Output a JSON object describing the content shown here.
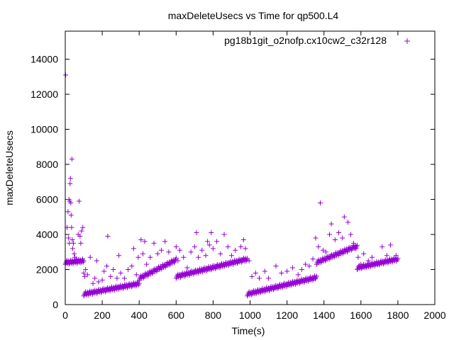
{
  "chart_data": {
    "type": "scatter",
    "title": "maxDeleteUsecs vs Time for qp500.L4",
    "xlabel": "Time(s)",
    "ylabel": "maxDeleteUsecs",
    "xlim": [
      0,
      2000
    ],
    "ylim": [
      0,
      15600
    ],
    "x_ticks": [
      0,
      200,
      400,
      600,
      800,
      1000,
      1200,
      1400,
      1600,
      1800,
      2000
    ],
    "y_ticks": [
      0,
      2000,
      4000,
      6000,
      8000,
      10000,
      12000,
      14000
    ],
    "grid": false,
    "legend_position": "top-right",
    "series": [
      {
        "name": "pg18b1git_o2nofp.cx10cw2_c32r128",
        "marker": "plus",
        "color": "#9400d3",
        "segments": [
          {
            "x_start": 0,
            "x_end": 100,
            "y_start": 2400,
            "y_end": 2500,
            "count": 34
          },
          {
            "x_start": 100,
            "x_end": 400,
            "y_start": 600,
            "y_end": 1200,
            "count": 90
          },
          {
            "x_start": 400,
            "x_end": 600,
            "y_start": 1500,
            "y_end": 2550,
            "count": 60
          },
          {
            "x_start": 600,
            "x_end": 985,
            "y_start": 1600,
            "y_end": 2600,
            "count": 115
          },
          {
            "x_start": 985,
            "x_end": 1360,
            "y_start": 600,
            "y_end": 1550,
            "count": 112
          },
          {
            "x_start": 1360,
            "x_end": 1580,
            "y_start": 2400,
            "y_end": 3350,
            "count": 66
          },
          {
            "x_start": 1580,
            "x_end": 1800,
            "y_start": 2100,
            "y_end": 2600,
            "count": 66
          }
        ],
        "scatter_points": [
          {
            "x": 2,
            "y": 13100
          },
          {
            "x": 10,
            "y": 4400
          },
          {
            "x": 15,
            "y": 5300
          },
          {
            "x": 18,
            "y": 3800
          },
          {
            "x": 20,
            "y": 6000
          },
          {
            "x": 22,
            "y": 3500
          },
          {
            "x": 24,
            "y": 5900
          },
          {
            "x": 26,
            "y": 6900
          },
          {
            "x": 28,
            "y": 7200
          },
          {
            "x": 30,
            "y": 5800
          },
          {
            "x": 32,
            "y": 5100
          },
          {
            "x": 34,
            "y": 4400
          },
          {
            "x": 36,
            "y": 8300
          },
          {
            "x": 38,
            "y": 3700
          },
          {
            "x": 40,
            "y": 3200
          },
          {
            "x": 44,
            "y": 3500
          },
          {
            "x": 48,
            "y": 2900
          },
          {
            "x": 52,
            "y": 2700
          },
          {
            "x": 60,
            "y": 2600
          },
          {
            "x": 70,
            "y": 4000
          },
          {
            "x": 75,
            "y": 5900
          },
          {
            "x": 80,
            "y": 3900
          },
          {
            "x": 84,
            "y": 3500
          },
          {
            "x": 88,
            "y": 4200
          },
          {
            "x": 95,
            "y": 4400
          },
          {
            "x": 100,
            "y": 1800
          },
          {
            "x": 105,
            "y": 1600
          },
          {
            "x": 110,
            "y": 2000
          },
          {
            "x": 120,
            "y": 1700
          },
          {
            "x": 135,
            "y": 2700
          },
          {
            "x": 150,
            "y": 1200
          },
          {
            "x": 160,
            "y": 1500
          },
          {
            "x": 170,
            "y": 2500
          },
          {
            "x": 180,
            "y": 1300
          },
          {
            "x": 200,
            "y": 1400
          },
          {
            "x": 210,
            "y": 1900
          },
          {
            "x": 225,
            "y": 2200
          },
          {
            "x": 230,
            "y": 3900
          },
          {
            "x": 245,
            "y": 1600
          },
          {
            "x": 260,
            "y": 2000
          },
          {
            "x": 280,
            "y": 1500
          },
          {
            "x": 290,
            "y": 2800
          },
          {
            "x": 300,
            "y": 1800
          },
          {
            "x": 320,
            "y": 1500
          },
          {
            "x": 340,
            "y": 2000
          },
          {
            "x": 360,
            "y": 2200
          },
          {
            "x": 370,
            "y": 3200
          },
          {
            "x": 385,
            "y": 1700
          },
          {
            "x": 395,
            "y": 2700
          },
          {
            "x": 410,
            "y": 3700
          },
          {
            "x": 420,
            "y": 2900
          },
          {
            "x": 430,
            "y": 3600
          },
          {
            "x": 440,
            "y": 2300
          },
          {
            "x": 460,
            "y": 2700
          },
          {
            "x": 480,
            "y": 3500
          },
          {
            "x": 500,
            "y": 2900
          },
          {
            "x": 520,
            "y": 3100
          },
          {
            "x": 540,
            "y": 3600
          },
          {
            "x": 560,
            "y": 3000
          },
          {
            "x": 600,
            "y": 3300
          },
          {
            "x": 610,
            "y": 2500
          },
          {
            "x": 620,
            "y": 3100
          },
          {
            "x": 640,
            "y": 2700
          },
          {
            "x": 660,
            "y": 2100
          },
          {
            "x": 680,
            "y": 3000
          },
          {
            "x": 700,
            "y": 3300
          },
          {
            "x": 710,
            "y": 4100
          },
          {
            "x": 720,
            "y": 2700
          },
          {
            "x": 740,
            "y": 3100
          },
          {
            "x": 760,
            "y": 2800
          },
          {
            "x": 770,
            "y": 3600
          },
          {
            "x": 780,
            "y": 3400
          },
          {
            "x": 790,
            "y": 4100
          },
          {
            "x": 800,
            "y": 3200
          },
          {
            "x": 820,
            "y": 3600
          },
          {
            "x": 840,
            "y": 2900
          },
          {
            "x": 860,
            "y": 4000
          },
          {
            "x": 880,
            "y": 3300
          },
          {
            "x": 900,
            "y": 2800
          },
          {
            "x": 920,
            "y": 3100
          },
          {
            "x": 950,
            "y": 3300
          },
          {
            "x": 965,
            "y": 3700
          },
          {
            "x": 975,
            "y": 3200
          },
          {
            "x": 995,
            "y": 2500
          },
          {
            "x": 1010,
            "y": 1600
          },
          {
            "x": 1030,
            "y": 1800
          },
          {
            "x": 1050,
            "y": 1500
          },
          {
            "x": 1080,
            "y": 1900
          },
          {
            "x": 1100,
            "y": 1500
          },
          {
            "x": 1140,
            "y": 2200
          },
          {
            "x": 1170,
            "y": 1800
          },
          {
            "x": 1200,
            "y": 1900
          },
          {
            "x": 1230,
            "y": 2100
          },
          {
            "x": 1260,
            "y": 1700
          },
          {
            "x": 1280,
            "y": 2000
          },
          {
            "x": 1300,
            "y": 2300
          },
          {
            "x": 1320,
            "y": 2200
          },
          {
            "x": 1340,
            "y": 2600
          },
          {
            "x": 1355,
            "y": 3800
          },
          {
            "x": 1370,
            "y": 3300
          },
          {
            "x": 1380,
            "y": 5800
          },
          {
            "x": 1395,
            "y": 3100
          },
          {
            "x": 1410,
            "y": 3000
          },
          {
            "x": 1430,
            "y": 4000
          },
          {
            "x": 1440,
            "y": 4600
          },
          {
            "x": 1460,
            "y": 3700
          },
          {
            "x": 1480,
            "y": 4100
          },
          {
            "x": 1500,
            "y": 3800
          },
          {
            "x": 1510,
            "y": 5000
          },
          {
            "x": 1530,
            "y": 4700
          },
          {
            "x": 1545,
            "y": 4000
          },
          {
            "x": 1560,
            "y": 3500
          },
          {
            "x": 1570,
            "y": 3200
          },
          {
            "x": 1585,
            "y": 2700
          },
          {
            "x": 1600,
            "y": 2300
          },
          {
            "x": 1615,
            "y": 2900
          },
          {
            "x": 1640,
            "y": 2500
          },
          {
            "x": 1660,
            "y": 2700
          },
          {
            "x": 1690,
            "y": 2300
          },
          {
            "x": 1715,
            "y": 3300
          },
          {
            "x": 1740,
            "y": 2800
          },
          {
            "x": 1760,
            "y": 3400
          },
          {
            "x": 1790,
            "y": 2800
          }
        ]
      }
    ]
  }
}
